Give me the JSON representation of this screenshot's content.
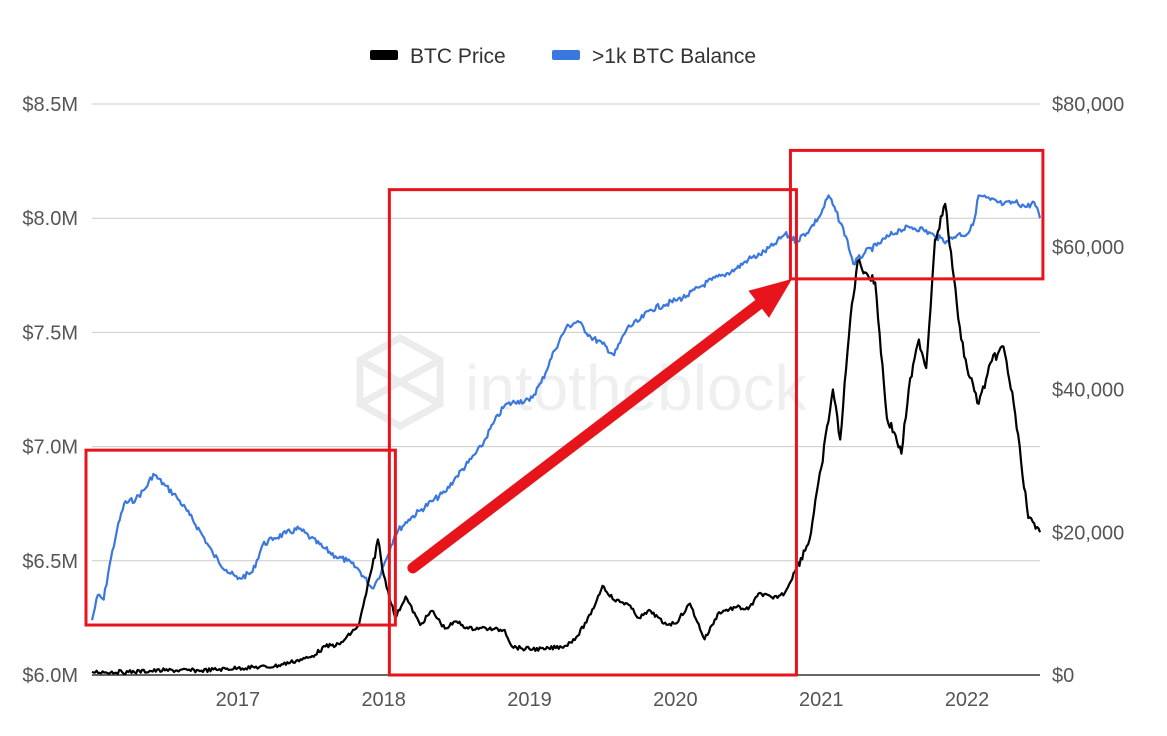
{
  "chart_data": {
    "type": "line",
    "title": "",
    "legend": {
      "placement": "top-center",
      "entries": [
        {
          "name": "BTC Price",
          "color": "#000000"
        },
        {
          "name": ">1k BTC Balance",
          "color": "#3a78e0"
        }
      ]
    },
    "watermark": "intotheblock",
    "x_axis": {
      "type": "date",
      "range": [
        2016.0,
        2022.5
      ],
      "tick_values": [
        2017,
        2018,
        2019,
        2020,
        2021,
        2022
      ],
      "tick_labels": [
        "2017",
        "2018",
        "2019",
        "2020",
        "2021",
        "2022"
      ]
    },
    "y_axis_left": {
      "series": ">1k BTC Balance",
      "range": [
        6.0,
        8.5
      ],
      "unit": "USD millions",
      "tick_values": [
        6.0,
        6.5,
        7.0,
        7.5,
        8.0,
        8.5
      ],
      "tick_labels": [
        "$6.0M",
        "$6.5M",
        "$7.0M",
        "$7.5M",
        "$8.0M",
        "$8.5M"
      ]
    },
    "y_axis_right": {
      "series": "BTC Price",
      "range": [
        0,
        80000
      ],
      "tick_values": [
        0,
        20000,
        40000,
        60000,
        80000
      ],
      "tick_labels": [
        "$0",
        "$20,000",
        "$40,000",
        "$60,000",
        "$80,000"
      ]
    },
    "grid": true,
    "series": [
      {
        "name": "BTC Price",
        "axis": "right",
        "color": "#000000",
        "points": [
          [
            2016.0,
            430
          ],
          [
            2016.25,
            420
          ],
          [
            2016.5,
            650
          ],
          [
            2016.75,
            620
          ],
          [
            2017.0,
            970
          ],
          [
            2017.25,
            1200
          ],
          [
            2017.4,
            2000
          ],
          [
            2017.5,
            2500
          ],
          [
            2017.6,
            4000
          ],
          [
            2017.7,
            4300
          ],
          [
            2017.83,
            7000
          ],
          [
            2017.92,
            15000
          ],
          [
            2017.96,
            19000
          ],
          [
            2018.0,
            14000
          ],
          [
            2018.08,
            8000
          ],
          [
            2018.15,
            11000
          ],
          [
            2018.25,
            7000
          ],
          [
            2018.33,
            9000
          ],
          [
            2018.42,
            6500
          ],
          [
            2018.5,
            7500
          ],
          [
            2018.58,
            6500
          ],
          [
            2018.67,
            6600
          ],
          [
            2018.75,
            6400
          ],
          [
            2018.83,
            6300
          ],
          [
            2018.88,
            4000
          ],
          [
            2018.95,
            3700
          ],
          [
            2019.1,
            3600
          ],
          [
            2019.25,
            4100
          ],
          [
            2019.33,
            5500
          ],
          [
            2019.42,
            8500
          ],
          [
            2019.5,
            12500
          ],
          [
            2019.58,
            10500
          ],
          [
            2019.67,
            10000
          ],
          [
            2019.75,
            8000
          ],
          [
            2019.83,
            9000
          ],
          [
            2019.92,
            7200
          ],
          [
            2020.0,
            7200
          ],
          [
            2020.1,
            10000
          ],
          [
            2020.2,
            5000
          ],
          [
            2020.3,
            8800
          ],
          [
            2020.42,
            9500
          ],
          [
            2020.5,
            9200
          ],
          [
            2020.58,
            11500
          ],
          [
            2020.67,
            10700
          ],
          [
            2020.75,
            11500
          ],
          [
            2020.83,
            15000
          ],
          [
            2020.92,
            19000
          ],
          [
            2021.0,
            29000
          ],
          [
            2021.08,
            40000
          ],
          [
            2021.13,
            33000
          ],
          [
            2021.2,
            50000
          ],
          [
            2021.25,
            58000
          ],
          [
            2021.32,
            56000
          ],
          [
            2021.37,
            55000
          ],
          [
            2021.45,
            36000
          ],
          [
            2021.5,
            34000
          ],
          [
            2021.55,
            31000
          ],
          [
            2021.6,
            40000
          ],
          [
            2021.67,
            47000
          ],
          [
            2021.72,
            43000
          ],
          [
            2021.78,
            61000
          ],
          [
            2021.85,
            66000
          ],
          [
            2021.9,
            57000
          ],
          [
            2021.96,
            47000
          ],
          [
            2022.0,
            43000
          ],
          [
            2022.08,
            38000
          ],
          [
            2022.17,
            44000
          ],
          [
            2022.25,
            46000
          ],
          [
            2022.32,
            38000
          ],
          [
            2022.37,
            30000
          ],
          [
            2022.42,
            22000
          ],
          [
            2022.47,
            20500
          ],
          [
            2022.5,
            20000
          ]
        ]
      },
      {
        "name": ">1k BTC Balance",
        "axis": "left",
        "color": "#3a78e0",
        "points": [
          [
            2016.0,
            6.24
          ],
          [
            2016.04,
            6.35
          ],
          [
            2016.08,
            6.33
          ],
          [
            2016.12,
            6.48
          ],
          [
            2016.17,
            6.63
          ],
          [
            2016.22,
            6.75
          ],
          [
            2016.3,
            6.77
          ],
          [
            2016.37,
            6.82
          ],
          [
            2016.42,
            6.88
          ],
          [
            2016.5,
            6.83
          ],
          [
            2016.58,
            6.78
          ],
          [
            2016.67,
            6.7
          ],
          [
            2016.75,
            6.62
          ],
          [
            2016.83,
            6.53
          ],
          [
            2016.92,
            6.46
          ],
          [
            2017.0,
            6.42
          ],
          [
            2017.1,
            6.45
          ],
          [
            2017.17,
            6.57
          ],
          [
            2017.25,
            6.6
          ],
          [
            2017.33,
            6.62
          ],
          [
            2017.42,
            6.64
          ],
          [
            2017.5,
            6.6
          ],
          [
            2017.58,
            6.56
          ],
          [
            2017.67,
            6.52
          ],
          [
            2017.75,
            6.5
          ],
          [
            2017.83,
            6.46
          ],
          [
            2017.92,
            6.38
          ],
          [
            2017.96,
            6.42
          ],
          [
            2018.0,
            6.48
          ],
          [
            2018.08,
            6.62
          ],
          [
            2018.17,
            6.68
          ],
          [
            2018.25,
            6.72
          ],
          [
            2018.33,
            6.76
          ],
          [
            2018.42,
            6.8
          ],
          [
            2018.5,
            6.87
          ],
          [
            2018.58,
            6.93
          ],
          [
            2018.67,
            7.0
          ],
          [
            2018.75,
            7.1
          ],
          [
            2018.83,
            7.18
          ],
          [
            2018.92,
            7.2
          ],
          [
            2019.0,
            7.2
          ],
          [
            2019.08,
            7.28
          ],
          [
            2019.17,
            7.42
          ],
          [
            2019.25,
            7.52
          ],
          [
            2019.33,
            7.55
          ],
          [
            2019.42,
            7.48
          ],
          [
            2019.5,
            7.45
          ],
          [
            2019.58,
            7.4
          ],
          [
            2019.67,
            7.52
          ],
          [
            2019.75,
            7.55
          ],
          [
            2019.83,
            7.6
          ],
          [
            2019.92,
            7.62
          ],
          [
            2020.0,
            7.64
          ],
          [
            2020.08,
            7.66
          ],
          [
            2020.17,
            7.7
          ],
          [
            2020.25,
            7.73
          ],
          [
            2020.33,
            7.75
          ],
          [
            2020.42,
            7.78
          ],
          [
            2020.5,
            7.82
          ],
          [
            2020.58,
            7.84
          ],
          [
            2020.67,
            7.88
          ],
          [
            2020.75,
            7.93
          ],
          [
            2020.83,
            7.9
          ],
          [
            2020.92,
            7.95
          ],
          [
            2021.0,
            8.02
          ],
          [
            2021.05,
            8.1
          ],
          [
            2021.1,
            8.03
          ],
          [
            2021.17,
            7.92
          ],
          [
            2021.22,
            7.8
          ],
          [
            2021.3,
            7.85
          ],
          [
            2021.38,
            7.88
          ],
          [
            2021.46,
            7.92
          ],
          [
            2021.54,
            7.95
          ],
          [
            2021.62,
            7.96
          ],
          [
            2021.7,
            7.95
          ],
          [
            2021.78,
            7.92
          ],
          [
            2021.86,
            7.9
          ],
          [
            2021.94,
            7.93
          ],
          [
            2022.0,
            7.93
          ],
          [
            2022.04,
            7.97
          ],
          [
            2022.08,
            8.1
          ],
          [
            2022.16,
            8.08
          ],
          [
            2022.25,
            8.06
          ],
          [
            2022.33,
            8.07
          ],
          [
            2022.41,
            8.05
          ],
          [
            2022.46,
            8.07
          ],
          [
            2022.5,
            8.0
          ]
        ]
      }
    ],
    "annotations": {
      "boxes": [
        {
          "x": [
            2016.0,
            2018.08
          ],
          "y_right": [
            7000,
            31500
          ],
          "color": "#e8141b"
        },
        {
          "x": [
            2018.08,
            2020.83
          ],
          "y_right": [
            0,
            68000
          ],
          "color": "#e8141b"
        },
        {
          "x": [
            2020.83,
            2022.52
          ],
          "y_right": [
            55500,
            73500
          ],
          "color": "#e8141b"
        }
      ],
      "arrow": {
        "from": [
          2018.2,
          15000
        ],
        "to": [
          2020.8,
          55500
        ],
        "color": "#e8141b"
      }
    }
  }
}
